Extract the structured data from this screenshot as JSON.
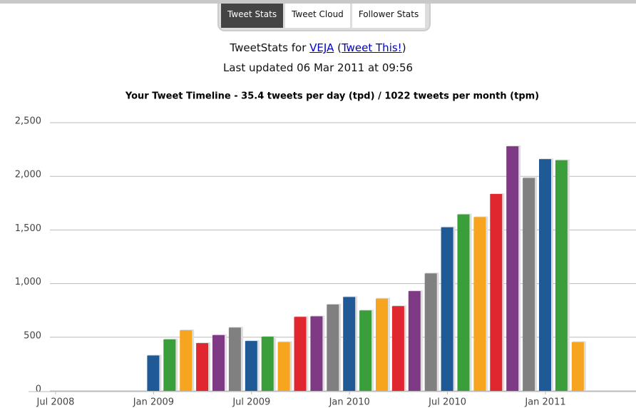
{
  "tabs": [
    "Tweet Stats",
    "Tweet Cloud",
    "Follower Stats"
  ],
  "header": {
    "line1": [
      "TweetStats for ",
      "VEJA",
      " (",
      "Tweet This!",
      ")"
    ],
    "line2": "Last updated 06 Mar 2011 at 09:56"
  },
  "chart_data": {
    "type": "bar",
    "title": "Your Tweet Timeline - 35.4 tweets per day (tpd) / 1022 tweets per month (tpm)",
    "x": [
      "2009-01",
      "2009-02",
      "2009-03",
      "2009-04",
      "2009-05",
      "2009-06",
      "2009-07",
      "2009-08",
      "2009-09",
      "2009-10",
      "2009-11",
      "2009-12",
      "2010-01",
      "2010-02",
      "2010-03",
      "2010-04",
      "2010-05",
      "2010-06",
      "2010-07",
      "2010-08",
      "2010-09",
      "2010-10",
      "2010-11",
      "2010-12",
      "2011-01",
      "2011-02",
      "2011-03"
    ],
    "values": [
      330,
      480,
      565,
      445,
      520,
      590,
      465,
      505,
      455,
      690,
      695,
      805,
      875,
      750,
      860,
      790,
      930,
      1095,
      1525,
      1645,
      1620,
      1835,
      2280,
      1985,
      2160,
      2150,
      455
    ],
    "palette": [
      "#1f5a96",
      "#3a9e3a",
      "#f7a51e",
      "#e0262f",
      "#7f3a86",
      "#808080"
    ],
    "xlim": [
      "2008-07",
      "2011-07"
    ],
    "xticks": [
      {
        "value": "2008-07",
        "label": "Jul 2008"
      },
      {
        "value": "2009-01",
        "label": "Jan 2009"
      },
      {
        "value": "2009-07",
        "label": "Jul 2009"
      },
      {
        "value": "2010-01",
        "label": "Jan 2010"
      },
      {
        "value": "2010-07",
        "label": "Jul 2010"
      },
      {
        "value": "2011-01",
        "label": "Jan 2011"
      }
    ],
    "ylim": [
      0,
      2500
    ],
    "yticks": [
      0,
      500,
      {
        "value": 1000,
        "label": "1,000"
      },
      {
        "value": 1500,
        "label": "1,500"
      },
      {
        "value": 2000,
        "label": "2,000"
      },
      {
        "value": 2500,
        "label": "2,500"
      }
    ],
    "grid": true
  }
}
